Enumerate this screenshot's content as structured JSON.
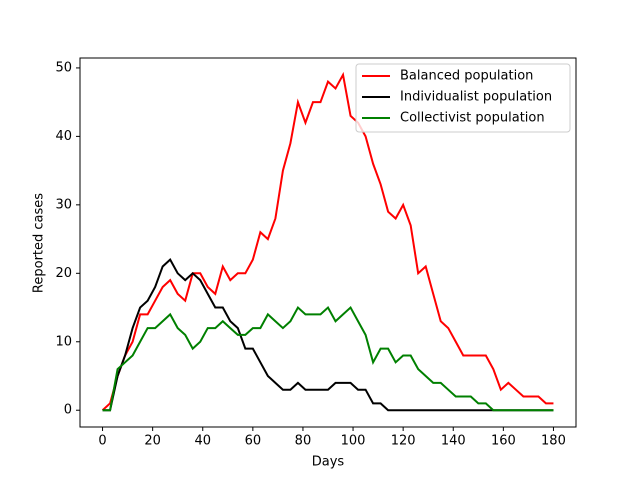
{
  "chart_data": {
    "type": "line",
    "xlabel": "Days",
    "ylabel": "Reported cases",
    "x": [
      0,
      3,
      6,
      9,
      12,
      15,
      18,
      21,
      24,
      27,
      30,
      33,
      36,
      39,
      42,
      45,
      48,
      51,
      54,
      57,
      60,
      63,
      66,
      69,
      72,
      75,
      78,
      81,
      84,
      87,
      90,
      93,
      96,
      99,
      102,
      105,
      108,
      111,
      114,
      117,
      120,
      123,
      126,
      129,
      132,
      135,
      138,
      141,
      144,
      147,
      150,
      153,
      156,
      159,
      162,
      165,
      168,
      171,
      174,
      177,
      180
    ],
    "series": [
      {
        "name": "Balanced population",
        "color": "#ff0000",
        "values": [
          0,
          1,
          5,
          8,
          10,
          14,
          14,
          16,
          18,
          19,
          17,
          16,
          20,
          20,
          18,
          17,
          21,
          19,
          20,
          20,
          22,
          26,
          25,
          28,
          35,
          39,
          45,
          42,
          45,
          45,
          48,
          47,
          49,
          43,
          42,
          40,
          36,
          33,
          29,
          28,
          30,
          27,
          20,
          21,
          17,
          13,
          12,
          10,
          8,
          8,
          8,
          8,
          6,
          3,
          4,
          3,
          2,
          2,
          2,
          1,
          1
        ]
      },
      {
        "name": "Individualist population",
        "color": "#000000",
        "values": [
          0,
          0,
          5,
          8,
          12,
          15,
          16,
          18,
          21,
          22,
          20,
          19,
          20,
          19,
          17,
          15,
          15,
          13,
          12,
          9,
          9,
          7,
          5,
          4,
          3,
          3,
          4,
          3,
          3,
          3,
          3,
          4,
          4,
          4,
          3,
          3,
          1,
          1,
          0,
          0,
          0,
          0,
          0,
          0,
          0,
          0,
          0,
          0,
          0,
          0,
          0,
          0,
          0,
          0,
          0,
          0,
          0,
          0,
          0,
          0,
          0
        ]
      },
      {
        "name": "Collectivist population",
        "color": "#008000",
        "values": [
          0,
          0,
          6,
          7,
          8,
          10,
          12,
          12,
          13,
          14,
          12,
          11,
          9,
          10,
          12,
          12,
          13,
          12,
          11,
          11,
          12,
          12,
          14,
          13,
          12,
          13,
          15,
          14,
          14,
          14,
          15,
          13,
          14,
          15,
          13,
          11,
          7,
          9,
          9,
          7,
          8,
          8,
          6,
          5,
          4,
          4,
          3,
          2,
          2,
          2,
          1,
          1,
          0,
          0,
          0,
          0,
          0,
          0,
          0,
          0,
          0
        ]
      }
    ],
    "xlim": [
      -9,
      189
    ],
    "ylim": [
      -2.45,
      51.45
    ],
    "xticks": [
      0,
      20,
      40,
      60,
      80,
      100,
      120,
      140,
      160,
      180
    ],
    "yticks": [
      0,
      10,
      20,
      30,
      40,
      50
    ],
    "legend": "upper right"
  }
}
